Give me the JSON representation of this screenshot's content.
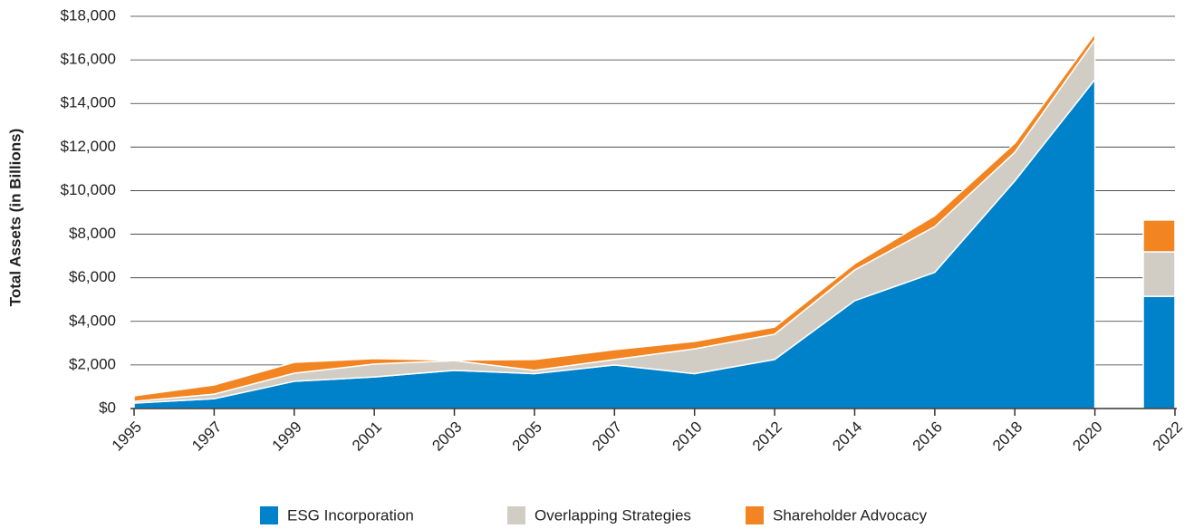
{
  "chart_data": [
    {
      "type": "area",
      "ylabel": "Total Assets (in Billions)",
      "categories": [
        "1995",
        "1997",
        "1999",
        "2001",
        "2003",
        "2005",
        "2007",
        "2010",
        "2012",
        "2014",
        "2016",
        "2018",
        "2020"
      ],
      "series": [
        {
          "name": "ESG Incorporation",
          "color": "#0082ca",
          "values": [
            250,
            450,
            1250,
            1450,
            1750,
            1600,
            2000,
            1600,
            2250,
            4950,
            6250,
            10450,
            15100
          ]
        },
        {
          "name": "Overlapping Strategies",
          "color": "#d1cdc4",
          "values": [
            80,
            210,
            370,
            590,
            450,
            150,
            250,
            1140,
            1160,
            1410,
            2100,
            1310,
            1820
          ]
        },
        {
          "name": "Shareholder Advocacy",
          "color": "#f28522",
          "values": [
            250,
            420,
            500,
            250,
            20,
            500,
            450,
            340,
            330,
            290,
            500,
            420,
            290
          ]
        }
      ],
      "ylim": [
        0,
        18000
      ],
      "yticks": [
        {
          "value": 0,
          "label": "$0"
        },
        {
          "value": 2000,
          "label": "$2,000"
        },
        {
          "value": 4000,
          "label": "$4,000"
        },
        {
          "value": 6000,
          "label": "$6,000"
        },
        {
          "value": 8000,
          "label": "$8,000"
        },
        {
          "value": 10000,
          "label": "$10,000"
        },
        {
          "value": 12000,
          "label": "$12,000"
        },
        {
          "value": 14000,
          "label": "$14,000"
        },
        {
          "value": 16000,
          "label": "$16,000"
        },
        {
          "value": 18000,
          "label": "$18,000"
        }
      ],
      "grid": true
    },
    {
      "type": "bar",
      "categories": [
        "2022"
      ],
      "series": [
        {
          "color": "#0082ca",
          "values": [
            5150
          ]
        },
        {
          "color": "#d1cdc4",
          "values": [
            2040
          ]
        },
        {
          "color": "#f28522",
          "values": [
            1460
          ]
        }
      ]
    }
  ]
}
